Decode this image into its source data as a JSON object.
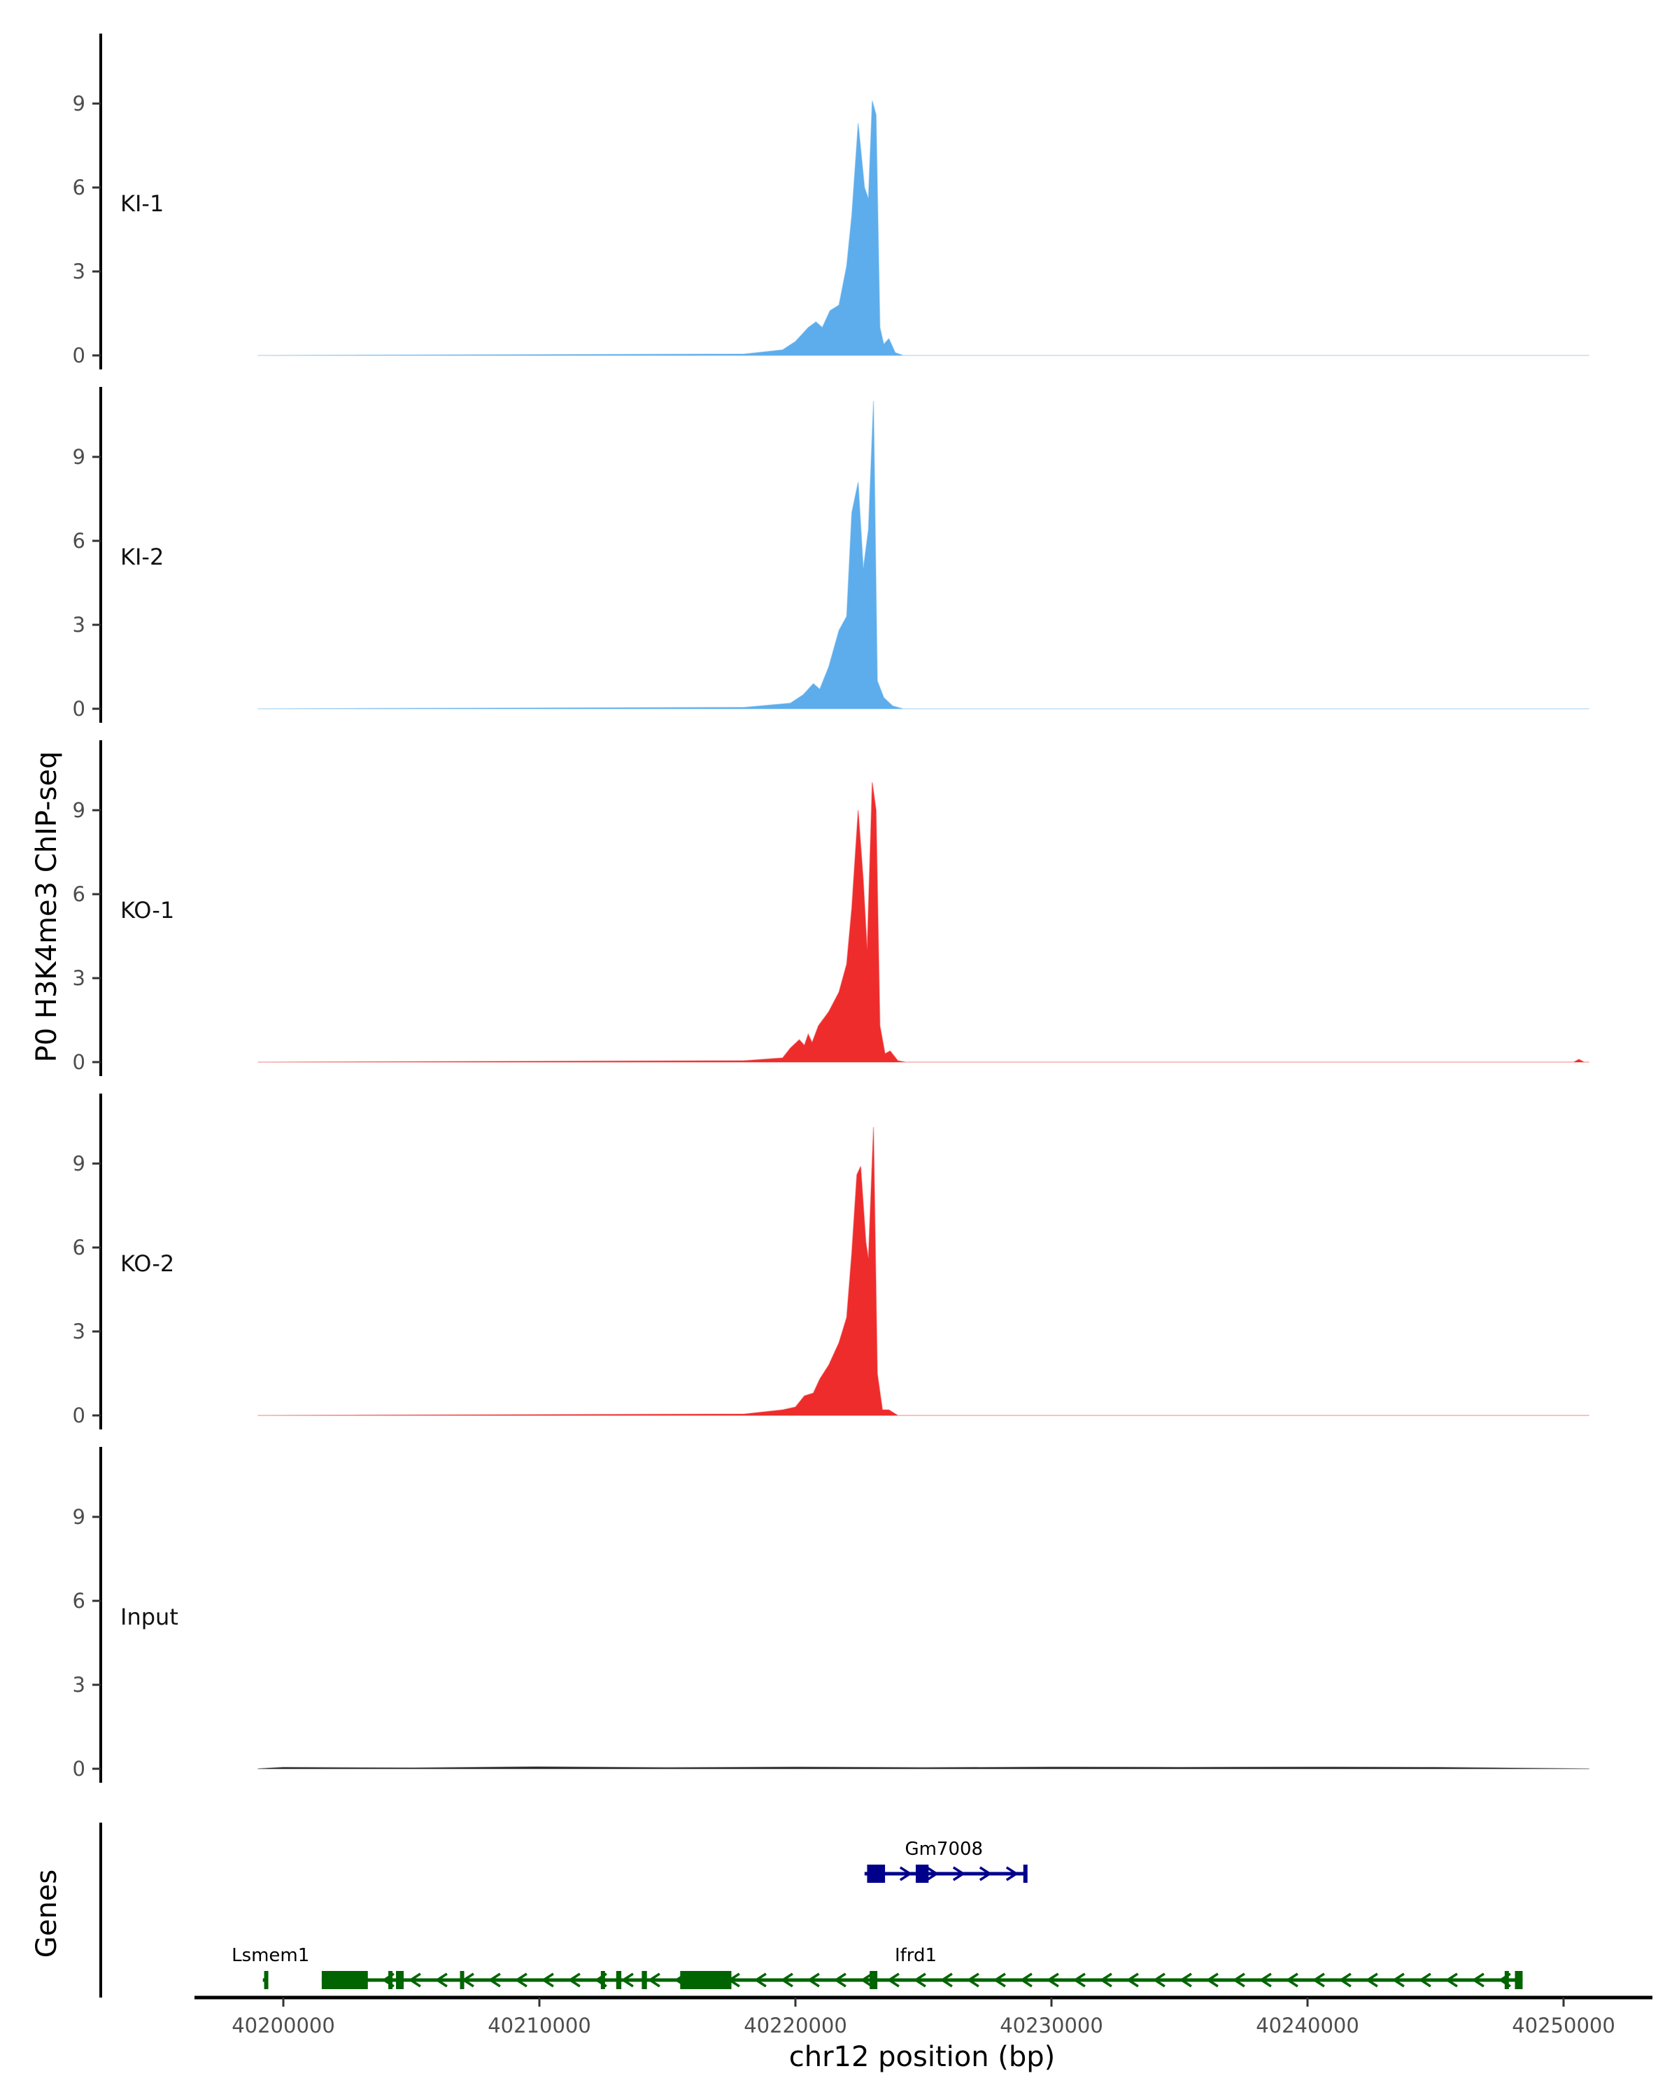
{
  "chart_data": {
    "type": "area",
    "title": "",
    "ylabel": "P0 H3K4me3 ChIP-seq",
    "xlabel": "chr12 position (bp)",
    "xlim": [
      40197000,
      40253500
    ],
    "ylim": [
      -0.5,
      11.5
    ],
    "x_ticks": [
      40200000,
      40210000,
      40220000,
      40230000,
      40240000,
      40250000
    ],
    "x_tick_labels": [
      "40200000",
      "40210000",
      "40220000",
      "40230000",
      "40240000",
      "40250000"
    ],
    "y_ticks": [
      0,
      3,
      6,
      9
    ],
    "y_tick_labels": [
      "0",
      "3",
      "6",
      "9"
    ],
    "grid": false,
    "series": [
      {
        "name": "KI-1",
        "color": "#5dadec",
        "points": [
          [
            40199000,
            0
          ],
          [
            40218000,
            0.05
          ],
          [
            40219500,
            0.2
          ],
          [
            40220000,
            0.5
          ],
          [
            40220500,
            1.0
          ],
          [
            40220800,
            1.2
          ],
          [
            40221050,
            1.0
          ],
          [
            40221350,
            1.6
          ],
          [
            40221700,
            1.8
          ],
          [
            40222000,
            3.2
          ],
          [
            40222200,
            5.0
          ],
          [
            40222450,
            8.3
          ],
          [
            40222700,
            6.0
          ],
          [
            40222850,
            5.6
          ],
          [
            40223000,
            9.1
          ],
          [
            40223150,
            8.6
          ],
          [
            40223300,
            1.0
          ],
          [
            40223450,
            0.4
          ],
          [
            40223650,
            0.6
          ],
          [
            40223900,
            0.1
          ],
          [
            40224200,
            0
          ],
          [
            40251000,
            0
          ]
        ]
      },
      {
        "name": "KI-2",
        "color": "#5dadec",
        "points": [
          [
            40199000,
            0
          ],
          [
            40218000,
            0.05
          ],
          [
            40219800,
            0.2
          ],
          [
            40220300,
            0.5
          ],
          [
            40220700,
            0.9
          ],
          [
            40220950,
            0.7
          ],
          [
            40221300,
            1.5
          ],
          [
            40221700,
            2.8
          ],
          [
            40222000,
            3.3
          ],
          [
            40222200,
            7.0
          ],
          [
            40222450,
            8.1
          ],
          [
            40222650,
            5.0
          ],
          [
            40222850,
            6.4
          ],
          [
            40223050,
            11.0
          ],
          [
            40223200,
            1.0
          ],
          [
            40223450,
            0.4
          ],
          [
            40223800,
            0.1
          ],
          [
            40224200,
            0
          ],
          [
            40251000,
            0
          ]
        ]
      },
      {
        "name": "KO-1",
        "color": "#ee2c2c",
        "points": [
          [
            40199000,
            0
          ],
          [
            40218000,
            0.05
          ],
          [
            40219500,
            0.15
          ],
          [
            40219800,
            0.5
          ],
          [
            40220150,
            0.8
          ],
          [
            40220350,
            0.6
          ],
          [
            40220500,
            1.0
          ],
          [
            40220650,
            0.7
          ],
          [
            40220900,
            1.3
          ],
          [
            40221300,
            1.8
          ],
          [
            40221700,
            2.5
          ],
          [
            40222000,
            3.5
          ],
          [
            40222200,
            5.5
          ],
          [
            40222450,
            9.0
          ],
          [
            40222650,
            6.5
          ],
          [
            40222800,
            4.0
          ],
          [
            40223000,
            10.0
          ],
          [
            40223150,
            9.0
          ],
          [
            40223300,
            1.3
          ],
          [
            40223500,
            0.3
          ],
          [
            40223700,
            0.4
          ],
          [
            40224000,
            0.05
          ],
          [
            40224300,
            0
          ],
          [
            40250400,
            0
          ],
          [
            40250600,
            0.1
          ],
          [
            40250800,
            0
          ],
          [
            40251000,
            0
          ]
        ]
      },
      {
        "name": "KO-2",
        "color": "#ee2c2c",
        "points": [
          [
            40199000,
            0
          ],
          [
            40218000,
            0.05
          ],
          [
            40219500,
            0.2
          ],
          [
            40220000,
            0.3
          ],
          [
            40220350,
            0.7
          ],
          [
            40220700,
            0.8
          ],
          [
            40220950,
            1.3
          ],
          [
            40221300,
            1.8
          ],
          [
            40221700,
            2.6
          ],
          [
            40222000,
            3.5
          ],
          [
            40222200,
            5.8
          ],
          [
            40222400,
            8.6
          ],
          [
            40222550,
            8.9
          ],
          [
            40222750,
            6.2
          ],
          [
            40222850,
            5.6
          ],
          [
            40223050,
            10.3
          ],
          [
            40223200,
            1.5
          ],
          [
            40223400,
            0.2
          ],
          [
            40223650,
            0.2
          ],
          [
            40224000,
            0
          ],
          [
            40251000,
            0
          ]
        ]
      },
      {
        "name": "Input",
        "color": "#222222",
        "points": [
          [
            40199000,
            0
          ],
          [
            40200000,
            0.05
          ],
          [
            40205000,
            0.03
          ],
          [
            40210000,
            0.07
          ],
          [
            40215000,
            0.04
          ],
          [
            40220000,
            0.06
          ],
          [
            40225000,
            0.04
          ],
          [
            40230000,
            0.06
          ],
          [
            40235000,
            0.05
          ],
          [
            40240000,
            0.06
          ],
          [
            40245000,
            0.05
          ],
          [
            40251000,
            0
          ]
        ]
      }
    ]
  },
  "genes": {
    "axis_label": "Genes",
    "list": [
      {
        "name": "Lsmem1",
        "strand": "-",
        "color": "#006400",
        "row": 2,
        "start": 40199200,
        "end": 40199400,
        "exons": [
          [
            40199250,
            40199350
          ]
        ],
        "label_at": 40199500
      },
      {
        "name": "Ifrd1",
        "strand": "-",
        "color": "#006400",
        "row": 2,
        "start": 40201500,
        "end": 40248400,
        "exons": [
          [
            40201500,
            40203300
          ],
          [
            40204100,
            40204200
          ],
          [
            40204400,
            40204700
          ],
          [
            40206900,
            40207000
          ],
          [
            40212400,
            40212500
          ],
          [
            40213000,
            40213200
          ],
          [
            40214000,
            40214200
          ],
          [
            40215500,
            40217500
          ],
          [
            40222900,
            40223200
          ],
          [
            40247700,
            40247800
          ],
          [
            40248100,
            40248400
          ]
        ],
        "label_at": 40224700
      },
      {
        "name": "Gm7008",
        "strand": "+",
        "color": "#00008b",
        "row": 1,
        "start": 40222700,
        "end": 40229000,
        "exons": [
          [
            40222800,
            40223500
          ],
          [
            40224700,
            40225200
          ],
          [
            40228900,
            40229000
          ]
        ],
        "label_at": 40225800
      }
    ]
  }
}
